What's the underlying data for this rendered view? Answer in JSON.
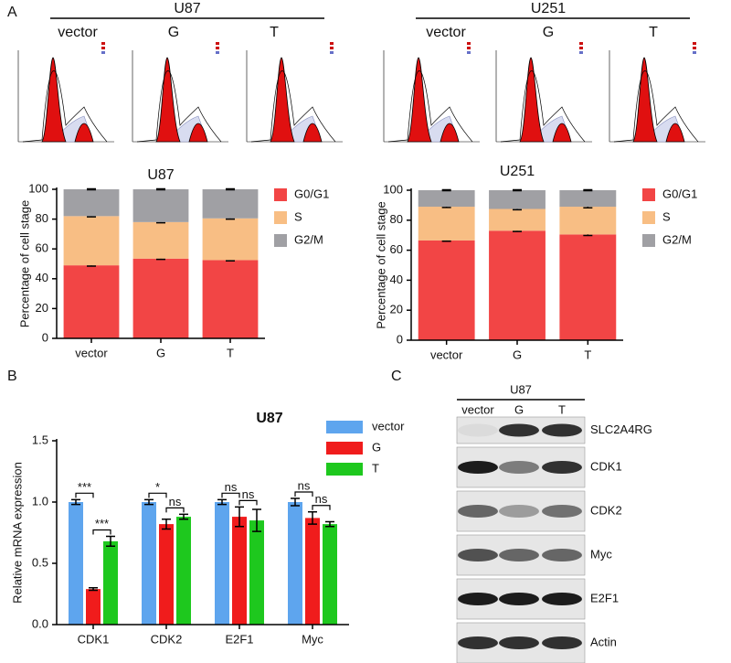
{
  "panel_labels": [
    "A",
    "B",
    "C"
  ],
  "flow": [
    {
      "title": "U87",
      "lanes": [
        "vector",
        "G",
        "T"
      ]
    },
    {
      "title": "U251",
      "lanes": [
        "vector",
        "G",
        "T"
      ]
    }
  ],
  "chart_data": [
    {
      "type": "stacked_bar",
      "title": "U87",
      "y_label": "Percentage of cell stage",
      "categories": [
        "vector",
        "G",
        "T"
      ],
      "ylim": [
        0,
        100
      ],
      "yticks": [
        0,
        20,
        40,
        60,
        80,
        100
      ],
      "series": [
        {
          "name": "G0/G1",
          "color": "#f24545",
          "values": [
            49,
            53.5,
            52.5
          ],
          "errors": [
            0.5,
            0.5,
            0.5
          ]
        },
        {
          "name": "S",
          "color": "#f8be84",
          "values": [
            33,
            24.5,
            28
          ],
          "errors": [
            0.5,
            0.5,
            0.5
          ]
        },
        {
          "name": "G2/M",
          "color": "#a0a0a4",
          "values": [
            18,
            22,
            19.5
          ],
          "errors": [
            0.3,
            0.3,
            0.3
          ]
        }
      ]
    },
    {
      "type": "stacked_bar",
      "title": "U251",
      "y_label": "Percentage of cell stage",
      "categories": [
        "vector",
        "G",
        "T"
      ],
      "ylim": [
        0,
        100
      ],
      "yticks": [
        0,
        20,
        40,
        60,
        80,
        100
      ],
      "series": [
        {
          "name": "G0/G1",
          "color": "#f24545",
          "values": [
            66.5,
            73,
            70.5
          ],
          "errors": [
            0.5,
            0.5,
            0.7
          ]
        },
        {
          "name": "S",
          "color": "#f8be84",
          "values": [
            22.5,
            14.5,
            18.5
          ],
          "errors": [
            0.5,
            0.5,
            0.7
          ]
        },
        {
          "name": "G2/M",
          "color": "#a0a0a4",
          "values": [
            11,
            12.5,
            11
          ],
          "errors": [
            0.3,
            0.3,
            0.3
          ]
        }
      ]
    },
    {
      "type": "bar",
      "title": "U87",
      "y_label": "Relative mRNA expression",
      "categories": [
        "CDK1",
        "CDK2",
        "E2F1",
        "Myc"
      ],
      "ylim": [
        0,
        1.5
      ],
      "yticks": [
        {
          "value": 0,
          "label": "0.0"
        },
        {
          "value": 0.5,
          "label": "0.5"
        },
        {
          "value": 1,
          "label": "1.0"
        },
        {
          "value": 1.5,
          "label": "1.5"
        }
      ],
      "series": [
        {
          "name": "vector",
          "color": "#5ea5ee",
          "values": [
            1.0,
            1.0,
            1.0,
            1.0
          ],
          "errors": [
            0.02,
            0.02,
            0.02,
            0.03
          ]
        },
        {
          "name": "G",
          "color": "#f01c1c",
          "values": [
            0.29,
            0.82,
            0.88,
            0.87
          ],
          "errors": [
            0.01,
            0.04,
            0.08,
            0.05
          ]
        },
        {
          "name": "T",
          "color": "#1ec81e",
          "values": [
            0.68,
            0.88,
            0.85,
            0.82
          ],
          "errors": [
            0.04,
            0.02,
            0.09,
            0.02
          ]
        }
      ],
      "significance": [
        [
          "***",
          "***"
        ],
        [
          "*",
          "ns"
        ],
        [
          "ns",
          "ns"
        ],
        [
          "ns",
          "ns"
        ]
      ]
    }
  ],
  "blot": {
    "title": "U87",
    "lanes": [
      "vector",
      "G",
      "T"
    ],
    "rows": [
      "SLC2A4RG",
      "CDK1",
      "CDK2",
      "Myc",
      "E2F1",
      "Actin"
    ]
  }
}
